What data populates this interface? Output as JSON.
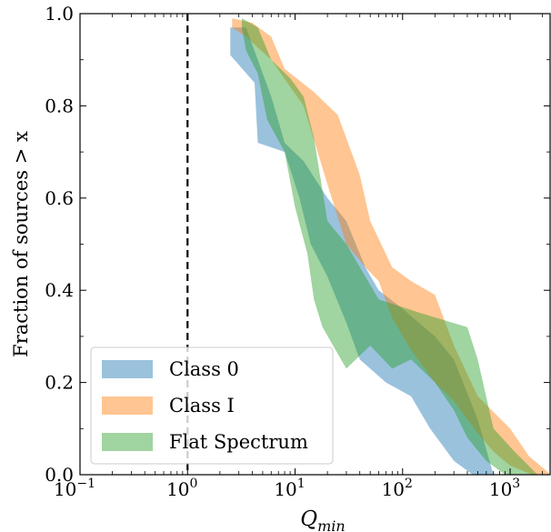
{
  "chart_data": {
    "type": "area",
    "title": "",
    "xlabel": "Q",
    "xlabel_sub": "min",
    "ylabel": "Fraction of sources > x",
    "xscale": "log",
    "xlim": [
      0.1,
      2400
    ],
    "ylim": [
      0.0,
      1.0
    ],
    "x_ticks": [
      {
        "value": 0.1,
        "base": "10",
        "exp": "−1"
      },
      {
        "value": 1,
        "base": "10",
        "exp": "0"
      },
      {
        "value": 10,
        "base": "10",
        "exp": "1"
      },
      {
        "value": 100,
        "base": "10",
        "exp": "2"
      },
      {
        "value": 1000,
        "base": "10",
        "exp": "3"
      }
    ],
    "y_ticks": [
      {
        "value": 0.0,
        "label": "0.0"
      },
      {
        "value": 0.2,
        "label": "0.2"
      },
      {
        "value": 0.4,
        "label": "0.4"
      },
      {
        "value": 0.6,
        "label": "0.6"
      },
      {
        "value": 0.8,
        "label": "0.8"
      },
      {
        "value": 1.0,
        "label": "1.0"
      }
    ],
    "reference_line": {
      "x": 1,
      "style": "dashed",
      "color": "#000000"
    },
    "legend_position": "lower-left",
    "series": [
      {
        "name": "Class 0",
        "color": "#1f77b4",
        "opacity": 0.45,
        "band": [
          [
            2.5,
            0.97
          ],
          [
            3.5,
            0.97
          ],
          [
            4.5,
            0.9
          ],
          [
            6,
            0.82
          ],
          [
            8,
            0.72
          ],
          [
            12,
            0.68
          ],
          [
            20,
            0.6
          ],
          [
            30,
            0.55
          ],
          [
            45,
            0.45
          ],
          [
            60,
            0.4
          ],
          [
            100,
            0.36
          ],
          [
            200,
            0.3
          ],
          [
            300,
            0.25
          ],
          [
            500,
            0.12
          ],
          [
            700,
            0.0
          ],
          [
            450,
            0.0
          ],
          [
            300,
            0.03
          ],
          [
            180,
            0.1
          ],
          [
            120,
            0.17
          ],
          [
            70,
            0.2
          ],
          [
            40,
            0.25
          ],
          [
            30,
            0.33
          ],
          [
            20,
            0.43
          ],
          [
            14,
            0.5
          ],
          [
            11,
            0.6
          ],
          [
            8,
            0.7
          ],
          [
            4.5,
            0.72
          ],
          [
            4.2,
            0.85
          ],
          [
            2.5,
            0.91
          ]
        ]
      },
      {
        "name": "Class I",
        "color": "#ff7f0e",
        "opacity": 0.45,
        "band": [
          [
            2.6,
            0.99
          ],
          [
            4,
            0.98
          ],
          [
            6,
            0.95
          ],
          [
            8,
            0.88
          ],
          [
            15,
            0.83
          ],
          [
            25,
            0.78
          ],
          [
            40,
            0.65
          ],
          [
            50,
            0.55
          ],
          [
            80,
            0.45
          ],
          [
            120,
            0.42
          ],
          [
            200,
            0.39
          ],
          [
            300,
            0.28
          ],
          [
            500,
            0.17
          ],
          [
            1000,
            0.1
          ],
          [
            1500,
            0.04
          ],
          [
            2400,
            0.0
          ],
          [
            1600,
            0.0
          ],
          [
            1000,
            0.02
          ],
          [
            700,
            0.05
          ],
          [
            500,
            0.09
          ],
          [
            300,
            0.16
          ],
          [
            200,
            0.2
          ],
          [
            120,
            0.27
          ],
          [
            80,
            0.34
          ],
          [
            60,
            0.42
          ],
          [
            45,
            0.45
          ],
          [
            30,
            0.5
          ],
          [
            20,
            0.63
          ],
          [
            12,
            0.8
          ],
          [
            6,
            0.9
          ],
          [
            3.5,
            0.95
          ],
          [
            2.6,
            0.97
          ]
        ]
      },
      {
        "name": "Flat Spectrum",
        "color": "#2ca02c",
        "opacity": 0.45,
        "band": [
          [
            3.2,
            0.99
          ],
          [
            4.5,
            0.97
          ],
          [
            6,
            0.9
          ],
          [
            9,
            0.86
          ],
          [
            12,
            0.82
          ],
          [
            15,
            0.73
          ],
          [
            20,
            0.55
          ],
          [
            30,
            0.5
          ],
          [
            60,
            0.38
          ],
          [
            150,
            0.35
          ],
          [
            400,
            0.32
          ],
          [
            500,
            0.25
          ],
          [
            700,
            0.1
          ],
          [
            1100,
            0.05
          ],
          [
            1800,
            0.0
          ],
          [
            900,
            0.0
          ],
          [
            600,
            0.03
          ],
          [
            400,
            0.08
          ],
          [
            300,
            0.14
          ],
          [
            200,
            0.2
          ],
          [
            120,
            0.25
          ],
          [
            80,
            0.23
          ],
          [
            50,
            0.28
          ],
          [
            30,
            0.23
          ],
          [
            18,
            0.32
          ],
          [
            15,
            0.38
          ],
          [
            13,
            0.48
          ],
          [
            10,
            0.58
          ],
          [
            8,
            0.7
          ],
          [
            5.5,
            0.77
          ],
          [
            4.5,
            0.87
          ],
          [
            3.5,
            0.92
          ],
          [
            3.2,
            0.97
          ]
        ]
      }
    ]
  }
}
